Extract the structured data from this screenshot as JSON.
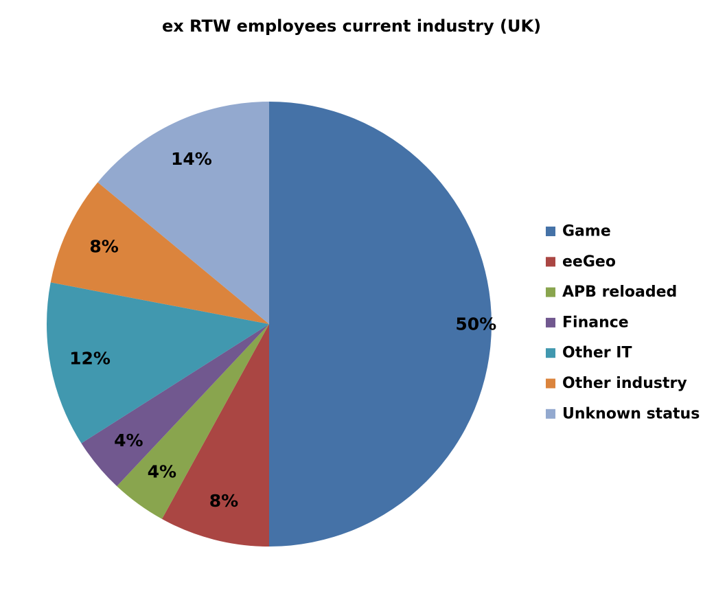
{
  "chart_data": {
    "type": "pie",
    "title": "ex RTW employees current industry (UK)",
    "categories": [
      "Game",
      "eeGeo",
      "APB reloaded",
      "Finance",
      "Other IT",
      "Other industry",
      "Unknown status"
    ],
    "values": [
      50,
      8,
      4,
      4,
      12,
      8,
      14
    ],
    "value_labels": [
      "50%",
      "8%",
      "4%",
      "4%",
      "12%",
      "8%",
      "14%"
    ],
    "unit": "%",
    "colors": [
      "#4572A7",
      "#AA4643",
      "#89A54E",
      "#71588F",
      "#4198AF",
      "#DB843D",
      "#93A9CF"
    ],
    "start_angle": "12 o'clock",
    "direction": "clockwise",
    "legend_position": "right"
  }
}
